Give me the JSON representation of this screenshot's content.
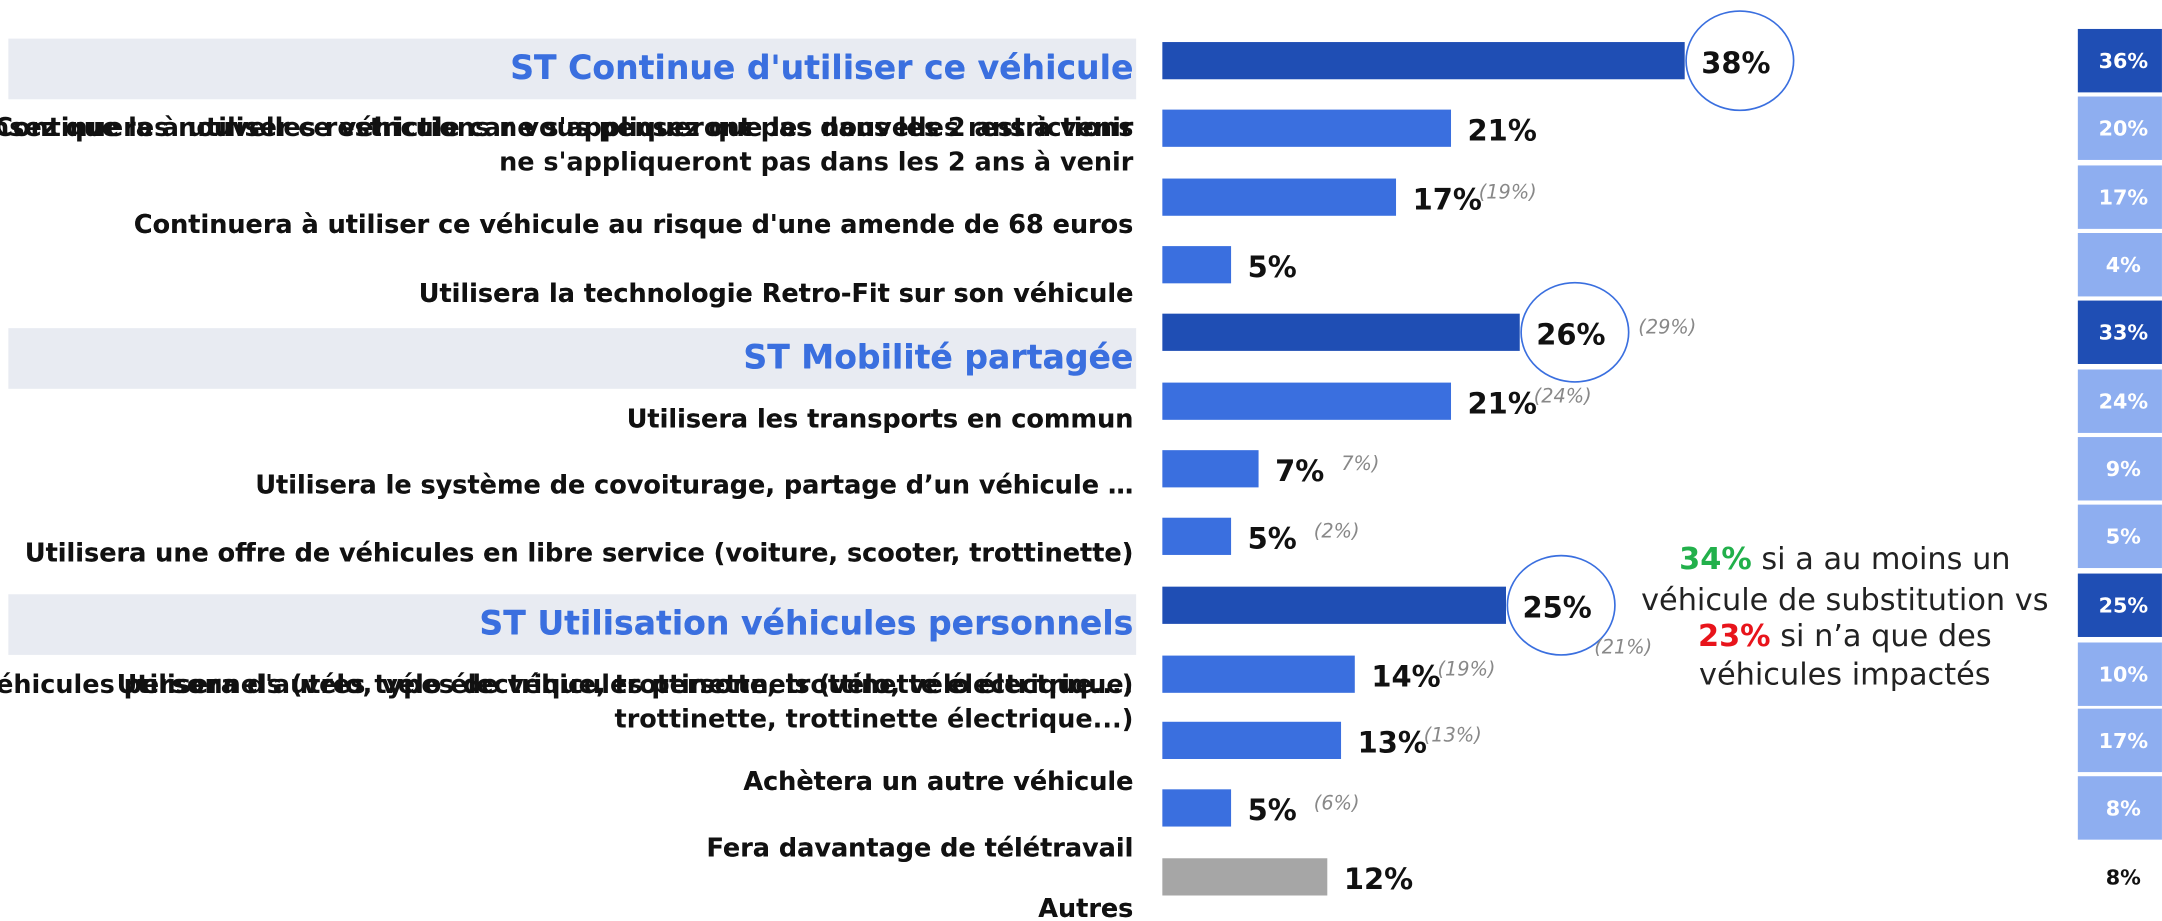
{
  "chart_data": {
    "type": "bar",
    "categories": [
      "ST Continue d'utiliser ce véhicule",
      "Continuera à utiliser ce véhicule car vous pensez que les nouvelles restrictions\nne s'appliqueront pas dans les 2 ans à venir",
      "Continuera à utiliser ce véhicule au risque d'une amende de 68 euros",
      "Utilisera la technologie Retro-Fit sur son véhicule",
      "ST Mobilité partagée",
      "Utilisera les transports en commun",
      "Utilisera le système de covoiturage, partage d’un véhicule …",
      "Utilisera une offre de véhicules en libre service (voiture, scooter, trottinette)",
      "ST Utilisation véhicules personnels",
      "Utilisera d'autres types de véhicules personnels (vélo, vélo électrique,\ntrottinette, trottinette électrique...)",
      "Achètera un autre véhicule",
      "Fera davantage de télétravail",
      "Autres"
    ],
    "values": [
      38,
      21,
      17,
      5,
      26,
      21,
      7,
      5,
      25,
      14,
      13,
      5,
      12
    ],
    "value_labels": [
      "38%",
      "21%",
      "17%",
      "5%",
      "26%",
      "21%",
      "7%",
      "5%",
      "25%",
      "14%",
      "13%",
      "5%",
      "12%"
    ],
    "colors": [
      "#1f4eb4",
      "#3a6fdf",
      "#3a6fdf",
      "#3a6fdf",
      "#1f4eb4",
      "#3a6fdf",
      "#3a6fdf",
      "#3a6fdf",
      "#1f4eb4",
      "#3a6fdf",
      "#3a6fdf",
      "#3a6fdf",
      "#a6a6a6"
    ],
    "header_color": "#1f4eb4",
    "comparison_labels": [
      null,
      null,
      "(19%)",
      null,
      "(29%)",
      "(24%)",
      "7%)",
      "(2%)",
      "(21%)",
      "(19%)",
      "(13%)",
      "(6%)",
      null
    ],
    "side_column": {
      "values": [
        36,
        20,
        17,
        4,
        33,
        24,
        9,
        5,
        25,
        10,
        17,
        8,
        8
      ],
      "value_labels": [
        "36%",
        "20%",
        "17%",
        "4%",
        "33%",
        "24%",
        "9%",
        "5%",
        "25%",
        "10%",
        "17%",
        "8%",
        "8%"
      ],
      "colors": [
        "#1f4eb4",
        "#8eaef0",
        "#8eaef0",
        "#8eaef0",
        "#1f4eb4",
        "#8eaef0",
        "#8eaef0",
        "#8eaef0",
        "#1f4eb4",
        "#8eaef0",
        "#8eaef0",
        "#8eaef0",
        "#ffffff"
      ]
    },
    "annotation": [
      [
        {
          "text": "34%",
          "color": "#22b04b"
        },
        {
          "text": " si a au moins un"
        }
      ],
      [
        {
          "text": "véhicule de substitution vs"
        }
      ],
      [
        {
          "text": "23%",
          "color": "#e8141b"
        },
        {
          "text": " si n’a que des"
        }
      ],
      [
        {
          "text": "véhicules impactés"
        }
      ]
    ]
  }
}
